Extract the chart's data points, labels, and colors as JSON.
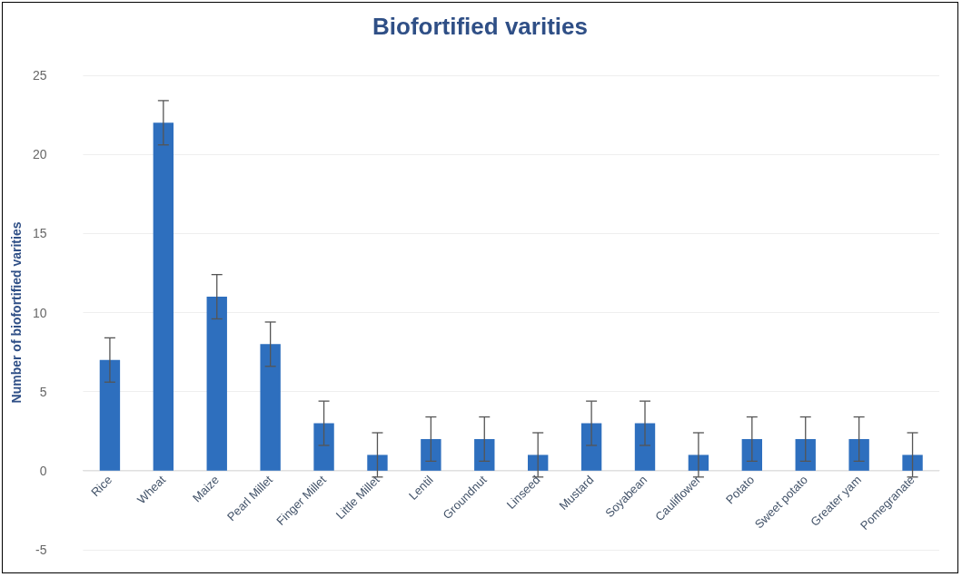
{
  "chart_data": {
    "type": "bar",
    "title": "Biofortified varities",
    "ylabel": "Number of biofortified varities",
    "categories": [
      "Rice",
      "Wheat",
      "Maize",
      "Pearl Millet",
      "Finger Millet",
      "Little Millet",
      "Lentil",
      "Groundnut",
      "Linseed",
      "Mustard",
      "Soyabean",
      "Cauliflower",
      "Potato",
      "Sweet potato",
      "Greater yam",
      "Pomegranate"
    ],
    "values": [
      7,
      22,
      11,
      8,
      3,
      1,
      2,
      2,
      1,
      3,
      3,
      1,
      2,
      2,
      2,
      1
    ],
    "errors": [
      1.4,
      1.4,
      1.4,
      1.4,
      1.4,
      1.4,
      1.4,
      1.4,
      1.4,
      1.4,
      1.4,
      1.4,
      1.4,
      1.4,
      1.4,
      1.4
    ],
    "color": "#2e6fbe",
    "ylim": [
      -5,
      25
    ],
    "yticks": [
      -5,
      0,
      5,
      10,
      15,
      20,
      25
    ],
    "grid": "y"
  }
}
